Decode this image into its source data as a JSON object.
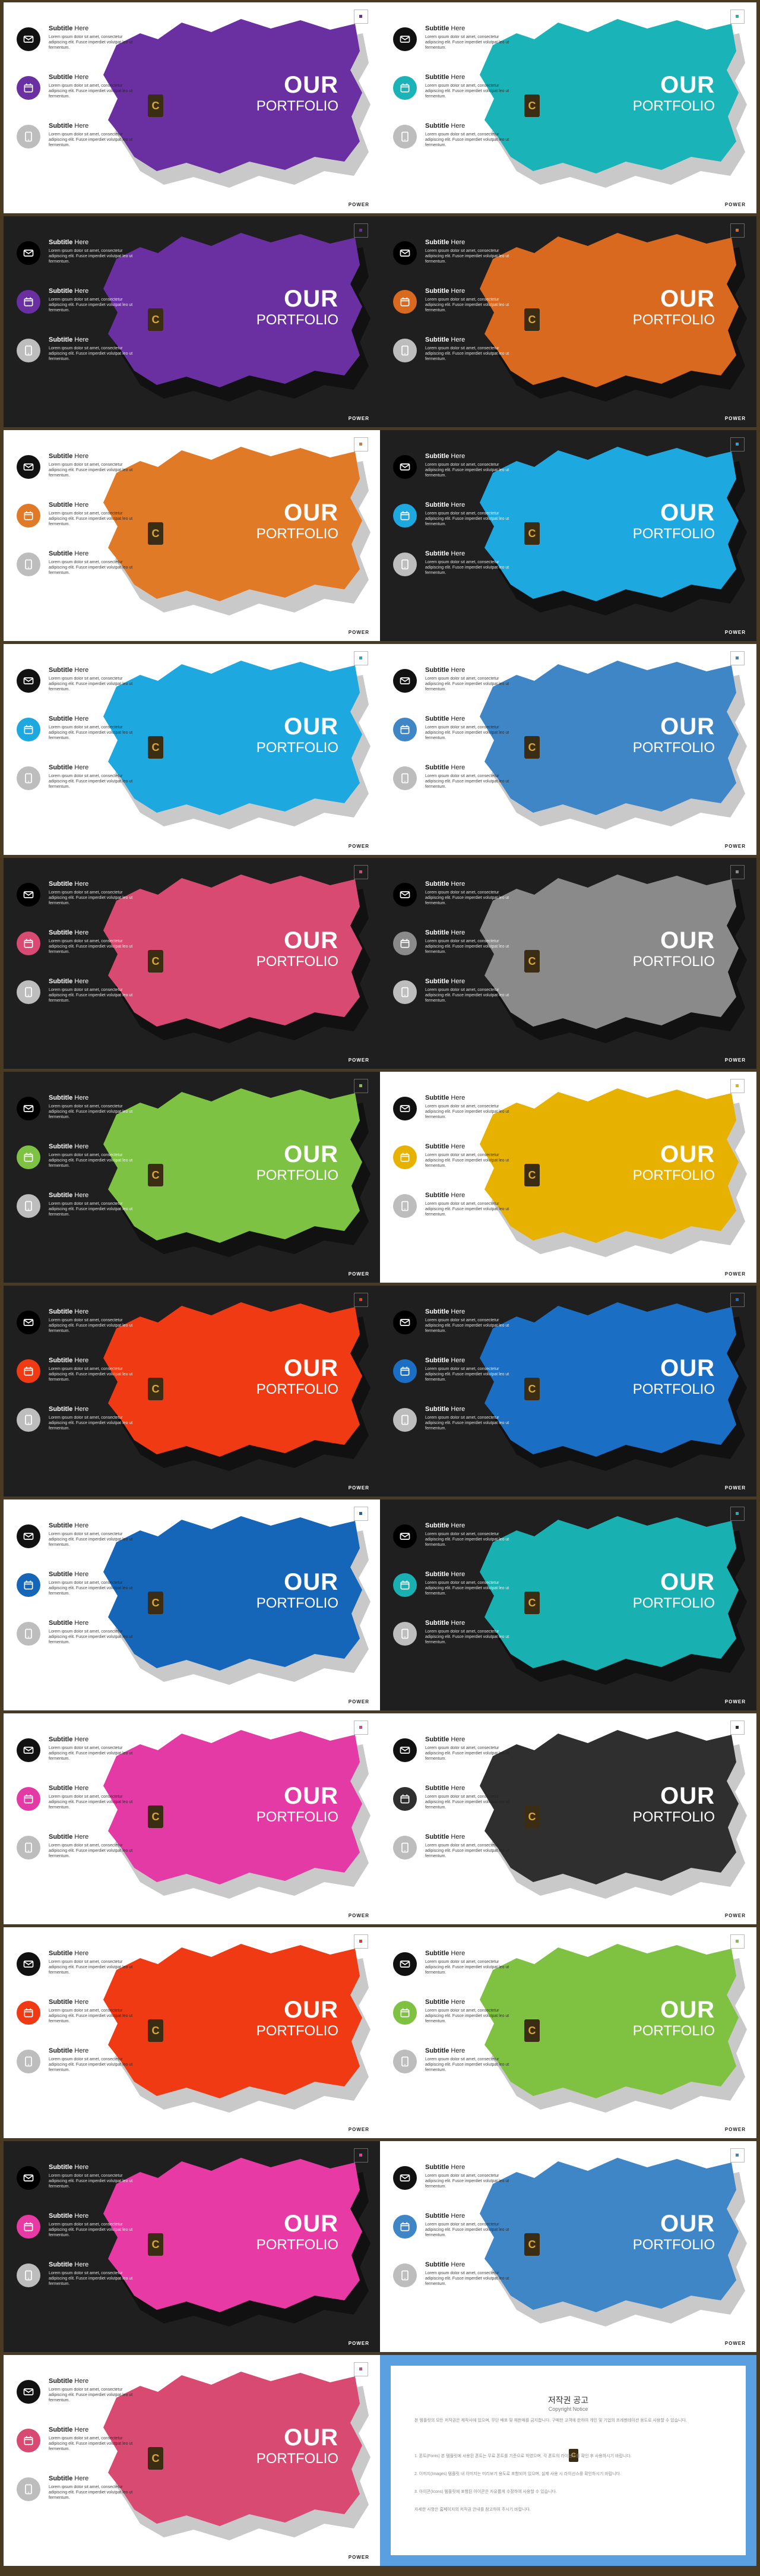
{
  "slide": {
    "heading_line1": "OUR",
    "heading_line2": "PORTFOLIO",
    "footer": "POWER",
    "logo_letter": "C",
    "features": [
      {
        "title_bold": "Subtitle",
        "title_rest": " Here",
        "icon": "mail-icon",
        "body": "Lorem ipsum dolor sit amet, consectetur adipiscing elit. Fusce imperdiet volutpat leo ut fermentum."
      },
      {
        "title_bold": "Subtitle",
        "title_rest": " Here",
        "icon": "calendar-icon",
        "body": "Lorem ipsum dolor sit amet, consectetur adipiscing elit. Fusce imperdiet volutpat leo ut fermentum."
      },
      {
        "title_bold": "Subtitle",
        "title_rest": " Here",
        "icon": "tablet-icon",
        "body": "Lorem ipsum dolor sit amet, consectetur adipiscing elit. Fusce imperdiet volutpat leo ut fermentum."
      }
    ]
  },
  "slides": [
    {
      "theme": "light",
      "accent": "#6a2fa0"
    },
    {
      "theme": "light",
      "accent": "#19b3b8"
    },
    {
      "theme": "dark",
      "accent": "#6a2fa0"
    },
    {
      "theme": "dark",
      "accent": "#d8691e"
    },
    {
      "theme": "light",
      "accent": "#e07a26"
    },
    {
      "theme": "dark",
      "accent": "#1ea8e0"
    },
    {
      "theme": "light",
      "accent": "#1ea8e0"
    },
    {
      "theme": "light",
      "accent": "#3f86c6"
    },
    {
      "theme": "dark",
      "accent": "#d84a72"
    },
    {
      "theme": "dark",
      "accent": "#8a8a8a"
    },
    {
      "theme": "dark",
      "accent": "#7dc242"
    },
    {
      "theme": "light",
      "accent": "#e7b100"
    },
    {
      "theme": "dark",
      "accent": "#ef3a13"
    },
    {
      "theme": "dark",
      "accent": "#1a6fc4"
    },
    {
      "theme": "light",
      "accent": "#1566b8"
    },
    {
      "theme": "dark",
      "accent": "#19b0b2"
    },
    {
      "theme": "light",
      "accent": "#e33aa6"
    },
    {
      "theme": "light",
      "accent": "#2f2f2f"
    },
    {
      "theme": "light",
      "accent": "#ef3a13"
    },
    {
      "theme": "light",
      "accent": "#7fc242"
    },
    {
      "theme": "dark",
      "accent": "#e83aa4"
    },
    {
      "theme": "light",
      "accent": "#3f86c6"
    },
    {
      "theme": "light",
      "accent": "#d84a72"
    }
  ],
  "notice": {
    "title": "저작권 공고",
    "subtitle": "Copyright Notice",
    "paragraphs": [
      "본 템플릿의 모든 저작권은 제작사에 있으며, 무단 배포 및 재판매를 금지합니다. 구매한 고객에 한하여 개인 및 기업의 프레젠테이션 용도로 사용할 수 있습니다.",
      "1. 폰트(Fonts) 본 템플릿에 사용된 폰트는 무료 폰트를 기준으로 하였으며, 각 폰트의 라이선스를 확인 후 사용하시기 바랍니다.",
      "2. 이미지(Images) 템플릿 내 이미지는 미리보기 용도로 포함되어 있으며, 실제 사용 시 라이선스를 확인하시기 바랍니다.",
      "3. 아이콘(Icons) 템플릿에 포함된 아이콘은 자유롭게 수정하여 사용할 수 있습니다.",
      "자세한 사항은 홈페이지의 저작권 안내를 참고하여 주시기 바랍니다."
    ]
  }
}
